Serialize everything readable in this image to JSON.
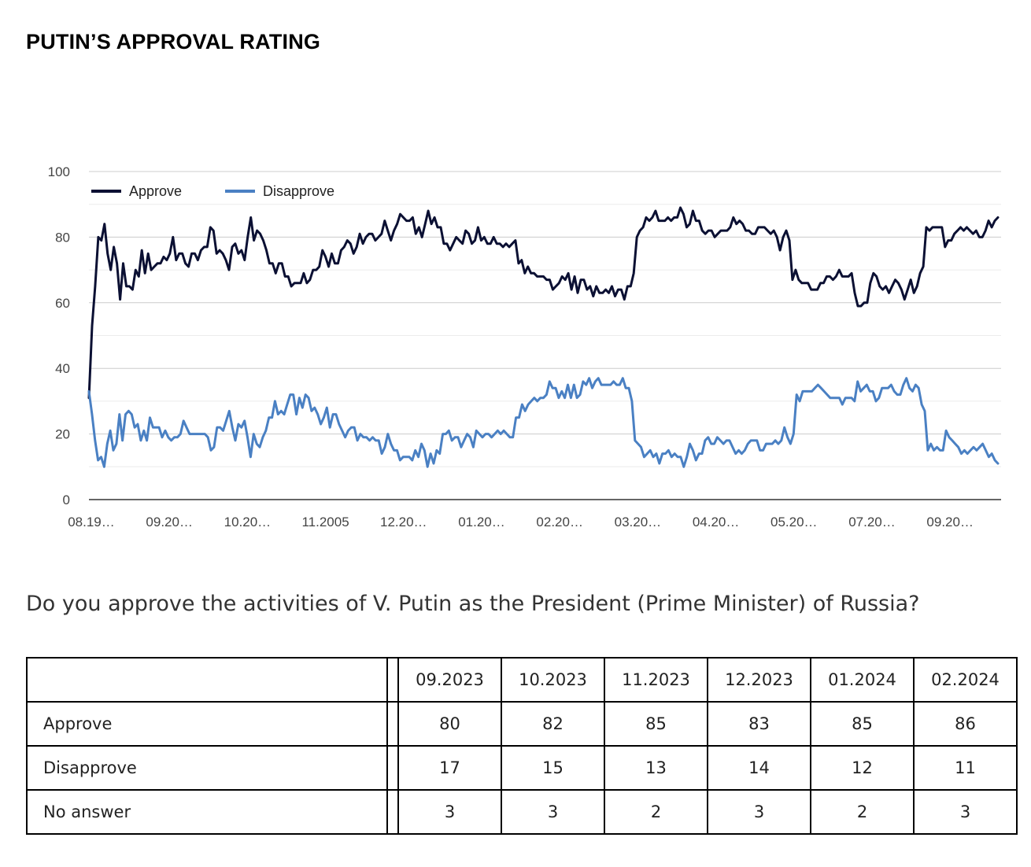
{
  "title": "PUTIN’S APPROVAL RATING",
  "question": "Do you approve the activities of V. Putin as the President (Prime Minister) of Russia?",
  "chart_data": {
    "type": "line",
    "title": "PUTIN’S APPROVAL RATING",
    "xlabel": "",
    "ylabel": "",
    "ylim": [
      0,
      100
    ],
    "yticks": [
      0,
      20,
      40,
      60,
      80,
      100
    ],
    "grid": true,
    "legend_position": "top-left",
    "xtick_labels": [
      "08.19…",
      "09.20…",
      "10.20…",
      "11.2005",
      "12.20…",
      "01.20…",
      "02.20…",
      "03.20…",
      "04.20…",
      "05.20…",
      "07.20…",
      "09.20…"
    ],
    "series": [
      {
        "name": "Approve",
        "color": "#0b1033",
        "values": [
          31,
          53,
          65,
          80,
          79,
          84,
          75,
          70,
          77,
          72,
          61,
          72,
          65,
          65,
          64,
          70,
          68,
          76,
          69,
          75,
          70,
          71,
          72,
          72,
          74,
          73,
          75,
          80,
          73,
          75,
          75,
          72,
          71,
          75,
          75,
          73,
          76,
          77,
          77,
          83,
          82,
          75,
          76,
          75,
          73,
          70,
          77,
          78,
          75,
          76,
          73,
          80,
          86,
          79,
          82,
          81,
          79,
          76,
          72,
          72,
          69,
          72,
          72,
          68,
          68,
          65,
          66,
          66,
          66,
          69,
          66,
          67,
          70,
          70,
          71,
          76,
          74,
          71,
          75,
          72,
          72,
          76,
          77,
          79,
          78,
          75,
          77,
          81,
          78,
          80,
          81,
          81,
          79,
          80,
          81,
          85,
          82,
          79,
          82,
          84,
          87,
          86,
          85,
          85,
          86,
          81,
          83,
          80,
          84,
          88,
          84,
          86,
          83,
          83,
          78,
          78,
          76,
          78,
          80,
          79,
          78,
          82,
          81,
          78,
          79,
          83,
          79,
          80,
          78,
          78,
          80,
          78,
          78,
          77,
          78,
          77,
          78,
          79,
          72,
          73,
          69,
          71,
          69,
          69,
          68,
          68,
          68,
          67,
          67,
          64,
          65,
          66,
          68,
          67,
          69,
          64,
          68,
          63,
          67,
          67,
          64,
          65,
          62,
          65,
          63,
          63,
          64,
          63,
          65,
          62,
          64,
          64,
          61,
          65,
          65,
          69,
          80,
          82,
          83,
          86,
          85,
          86,
          88,
          85,
          85,
          85,
          86,
          85,
          86,
          86,
          89,
          87,
          83,
          84,
          88,
          85,
          85,
          82,
          81,
          82,
          82,
          80,
          81,
          82,
          82,
          82,
          83,
          86,
          84,
          85,
          84,
          82,
          82,
          81,
          81,
          83,
          83,
          83,
          82,
          81,
          82,
          80,
          76,
          80,
          82,
          79,
          67,
          70,
          67,
          66,
          66,
          66,
          64,
          64,
          64,
          66,
          66,
          68,
          68,
          67,
          68,
          70,
          68,
          68,
          68,
          69,
          63,
          59,
          59,
          60,
          60,
          66,
          69,
          68,
          65,
          64,
          65,
          63,
          65,
          67,
          66,
          64,
          61,
          64,
          67,
          63,
          65,
          69,
          71,
          83,
          82,
          83,
          83,
          83,
          83,
          77,
          79,
          79,
          81,
          82,
          83,
          82,
          83,
          82,
          81,
          82,
          80,
          80,
          82,
          85,
          83,
          85,
          86
        ]
      },
      {
        "name": "Disapprove",
        "color": "#4a80c3",
        "values": [
          33,
          26,
          18,
          12,
          13,
          10,
          17,
          21,
          15,
          17,
          26,
          18,
          26,
          27,
          26,
          22,
          23,
          18,
          21,
          18,
          25,
          22,
          22,
          22,
          19,
          21,
          19,
          18,
          19,
          19,
          20,
          24,
          22,
          20,
          20,
          20,
          20,
          20,
          20,
          19,
          15,
          16,
          22,
          22,
          21,
          24,
          27,
          22,
          18,
          23,
          22,
          24,
          19,
          13,
          20,
          17,
          16,
          19,
          21,
          25,
          25,
          30,
          26,
          27,
          26,
          29,
          32,
          32,
          26,
          31,
          28,
          32,
          31,
          27,
          28,
          26,
          23,
          25,
          28,
          22,
          26,
          26,
          23,
          21,
          19,
          21,
          22,
          22,
          18,
          20,
          19,
          19,
          18,
          19,
          18,
          18,
          14,
          16,
          20,
          17,
          15,
          15,
          12,
          13,
          13,
          13,
          12,
          15,
          13,
          17,
          15,
          10,
          14,
          11,
          15,
          14,
          20,
          20,
          21,
          18,
          19,
          19,
          16,
          18,
          20,
          19,
          16,
          21,
          20,
          19,
          20,
          20,
          19,
          20,
          21,
          20,
          21,
          20,
          19,
          19,
          25,
          25,
          29,
          27,
          29,
          30,
          31,
          30,
          31,
          31,
          32,
          36,
          34,
          34,
          31,
          33,
          31,
          35,
          31,
          35,
          31,
          32,
          36,
          35,
          37,
          34,
          36,
          37,
          35,
          35,
          35,
          35,
          36,
          35,
          35,
          37,
          34,
          34,
          30,
          18,
          17,
          16,
          13,
          14,
          15,
          13,
          14,
          11,
          14,
          14,
          15,
          13,
          14,
          13,
          13,
          10,
          13,
          17,
          15,
          12,
          14,
          14,
          18,
          19,
          17,
          17,
          19,
          18,
          17,
          18,
          18,
          16,
          14,
          15,
          14,
          15,
          17,
          18,
          18,
          18,
          15,
          15,
          17,
          17,
          17,
          18,
          17,
          18,
          22,
          19,
          17,
          20,
          32,
          30,
          33,
          33,
          33,
          33,
          34,
          35,
          34,
          33,
          32,
          31,
          31,
          31,
          31,
          29,
          31,
          31,
          31,
          30,
          36,
          33,
          34,
          35,
          33,
          33,
          30,
          31,
          34,
          34,
          34,
          35,
          33,
          32,
          32,
          35,
          37,
          34,
          33,
          35,
          34,
          29,
          27,
          15,
          17,
          15,
          16,
          15,
          15,
          21,
          19,
          18,
          17,
          16,
          14,
          15,
          14,
          15,
          16,
          15,
          16,
          17,
          15,
          13,
          14,
          12,
          11
        ]
      }
    ]
  },
  "table": {
    "headers": [
      "",
      "09.2023",
      "10.2023",
      "11.2023",
      "12.2023",
      "01.2024",
      "02.2024"
    ],
    "rows": [
      {
        "label": "Approve",
        "values": [
          "80",
          "82",
          "85",
          "83",
          "85",
          "86"
        ]
      },
      {
        "label": "Disapprove",
        "values": [
          "17",
          "15",
          "13",
          "14",
          "12",
          "11"
        ]
      },
      {
        "label": "No answer",
        "values": [
          "3",
          "3",
          "2",
          "3",
          "2",
          "3"
        ]
      }
    ]
  }
}
